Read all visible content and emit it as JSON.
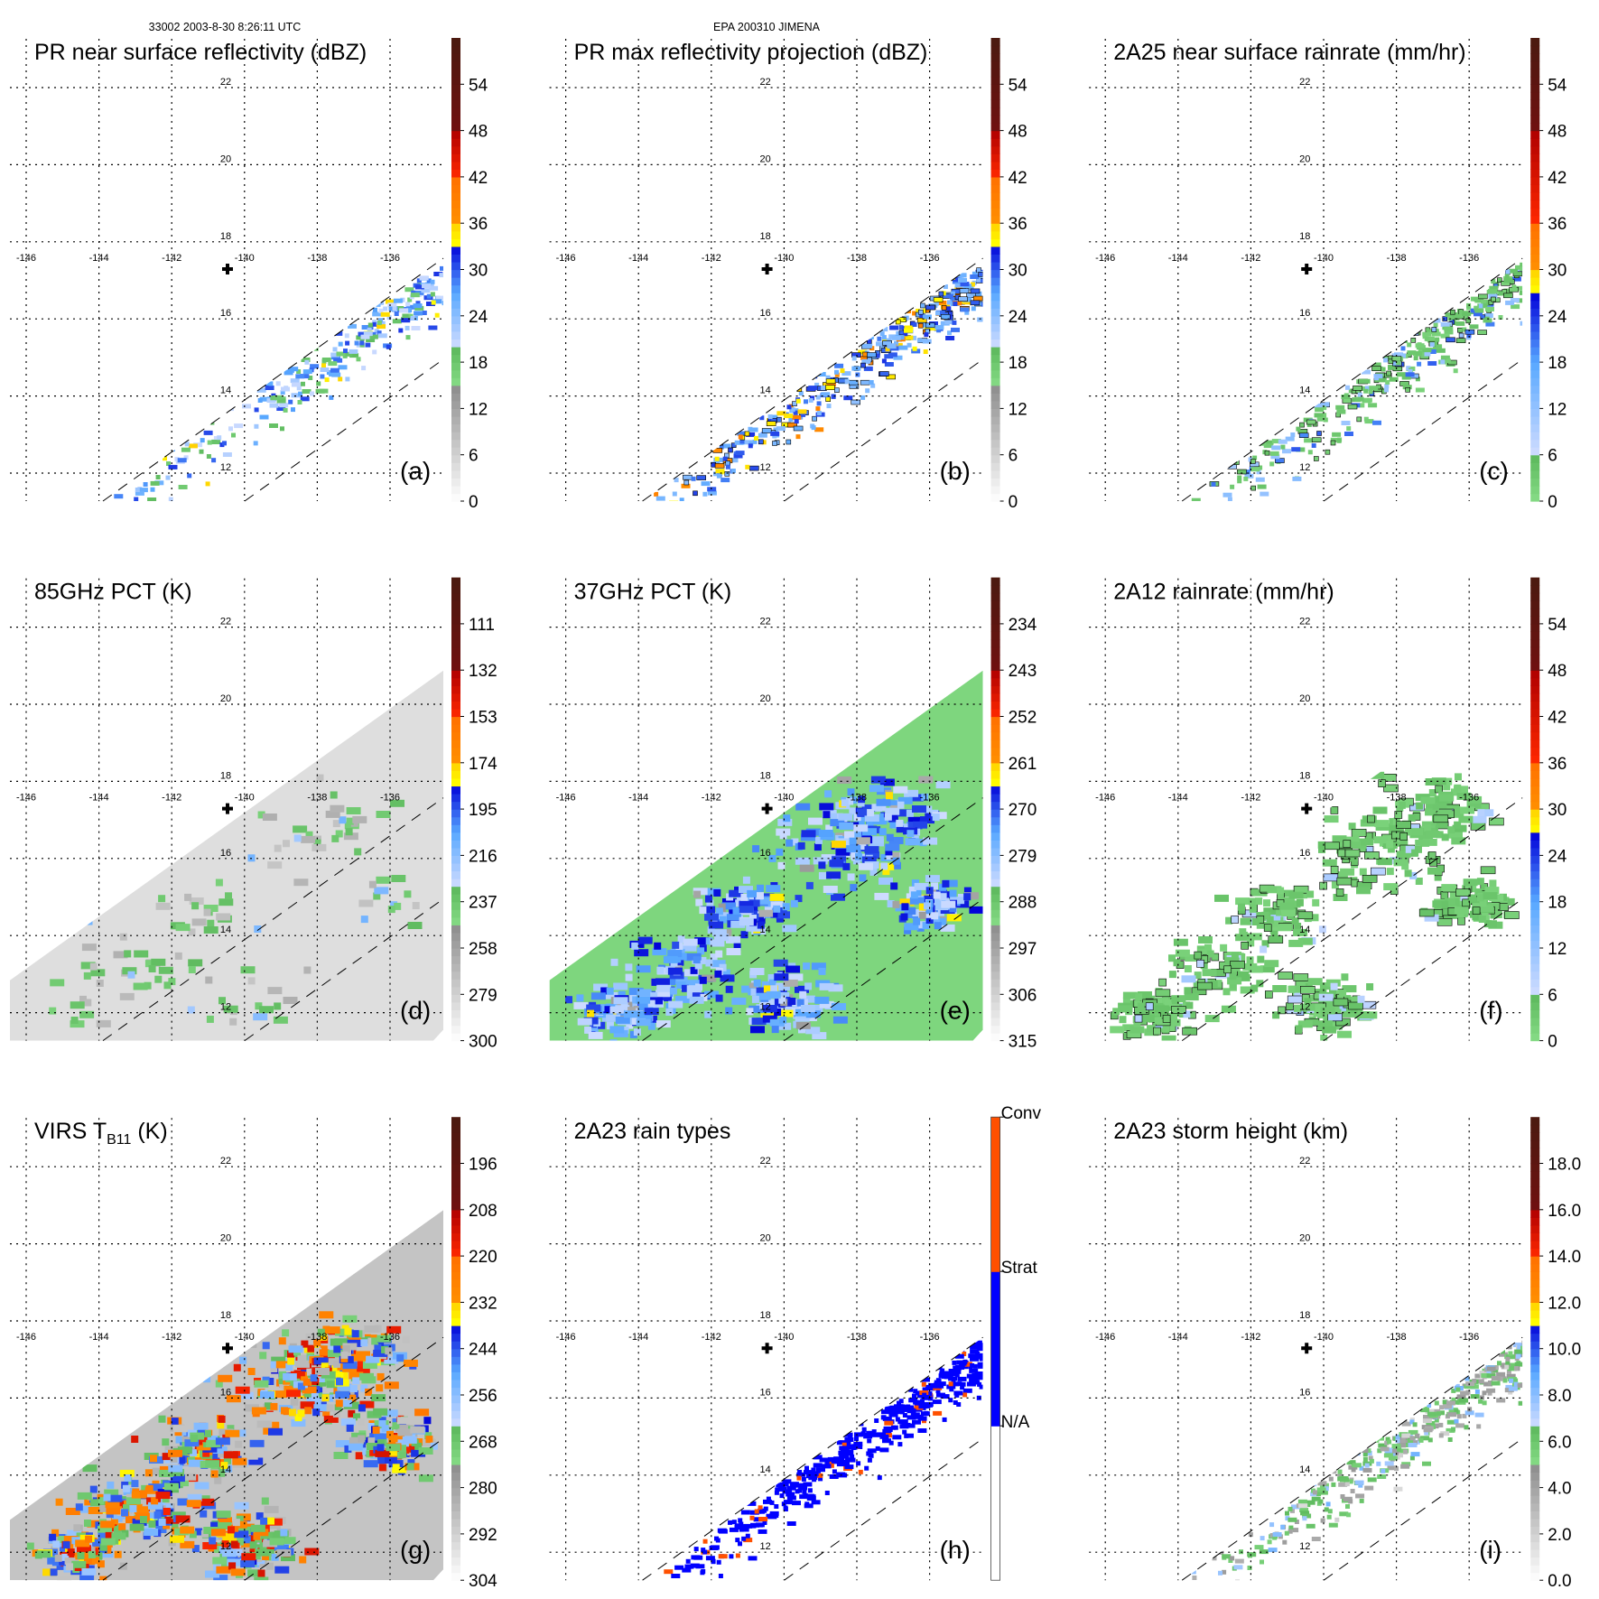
{
  "header": {
    "orbit_time": "33002 2003-8-30 8:26:11 UTC",
    "storm": "EPA 200310 JIMENA"
  },
  "colors": {
    "grid": "#000000",
    "pct85_bg": "#dedede",
    "pct37_bg": "#7ed67e",
    "virs_bg": "#c4c4c4"
  },
  "chart_data": [
    {
      "type": "heatmap",
      "id": "a",
      "title": "PR near surface reflectivity (dBZ)",
      "panel_label": "(a)",
      "colorbar": {
        "ticks": [
          "0",
          "6",
          "12",
          "18",
          "24",
          "30",
          "36",
          "42",
          "48",
          "54"
        ],
        "range": [
          0,
          60
        ],
        "scheme": "standard"
      },
      "lon_ticks": [
        "-146",
        "-144",
        "-142",
        "-140",
        "-138",
        "-136"
      ],
      "lat_ticks": [
        "22",
        "20",
        "18",
        "16",
        "14",
        "12"
      ],
      "swath": "pr"
    },
    {
      "type": "heatmap",
      "id": "b",
      "title": "PR max reflectivity projection (dBZ)",
      "panel_label": "(b)",
      "colorbar": {
        "ticks": [
          "0",
          "6",
          "12",
          "18",
          "24",
          "30",
          "36",
          "42",
          "48",
          "54"
        ],
        "range": [
          0,
          60
        ],
        "scheme": "standard"
      },
      "lon_ticks": [
        "-146",
        "-144",
        "-142",
        "-140",
        "-138",
        "-136"
      ],
      "lat_ticks": [
        "22",
        "20",
        "18",
        "16",
        "14",
        "12"
      ],
      "swath": "pr"
    },
    {
      "type": "heatmap",
      "id": "c",
      "title": "2A25 near surface rainrate (mm/hr)",
      "panel_label": "(c)",
      "colorbar": {
        "ticks": [
          "0",
          "6",
          "12",
          "18",
          "24",
          "30",
          "36",
          "42",
          "48",
          "54"
        ],
        "range": [
          0,
          60
        ],
        "scheme": "rain"
      },
      "lon_ticks": [
        "-146",
        "-144",
        "-142",
        "-140",
        "-138",
        "-136"
      ],
      "lat_ticks": [
        "22",
        "20",
        "18",
        "16",
        "14",
        "12"
      ],
      "swath": "pr"
    },
    {
      "type": "heatmap",
      "id": "d",
      "title": "85GHz PCT (K)",
      "panel_label": "(d)",
      "colorbar": {
        "ticks": [
          "300",
          "279",
          "258",
          "237",
          "216",
          "195",
          "174",
          "153",
          "132",
          "111"
        ],
        "range": [
          300,
          90
        ],
        "scheme": "standard"
      },
      "lon_ticks": [
        "-146",
        "-144",
        "-142",
        "-140",
        "-138",
        "-136"
      ],
      "lat_ticks": [
        "22",
        "20",
        "18",
        "16",
        "14",
        "12"
      ],
      "swath": "tmi"
    },
    {
      "type": "heatmap",
      "id": "e",
      "title": "37GHz PCT (K)",
      "panel_label": "(e)",
      "colorbar": {
        "ticks": [
          "315",
          "306",
          "297",
          "288",
          "279",
          "270",
          "261",
          "252",
          "243",
          "234"
        ],
        "range": [
          315,
          225
        ],
        "scheme": "standard"
      },
      "lon_ticks": [
        "-146",
        "-144",
        "-142",
        "-140",
        "-138",
        "-136"
      ],
      "lat_ticks": [
        "22",
        "20",
        "18",
        "16",
        "14",
        "12"
      ],
      "swath": "tmi"
    },
    {
      "type": "heatmap",
      "id": "f",
      "title": "2A12 rainrate (mm/hr)",
      "panel_label": "(f)",
      "colorbar": {
        "ticks": [
          "0",
          "6",
          "12",
          "18",
          "24",
          "30",
          "36",
          "42",
          "48",
          "54"
        ],
        "range": [
          0,
          60
        ],
        "scheme": "rain"
      },
      "lon_ticks": [
        "-146",
        "-144",
        "-142",
        "-140",
        "-138",
        "-136"
      ],
      "lat_ticks": [
        "22",
        "20",
        "18",
        "16",
        "14",
        "12"
      ],
      "swath": "tmi"
    },
    {
      "type": "heatmap",
      "id": "g",
      "title": "VIRS T",
      "title_sub": "B11",
      "title_suffix": " (K)",
      "panel_label": "(g)",
      "colorbar": {
        "ticks": [
          "304",
          "292",
          "280",
          "268",
          "256",
          "244",
          "232",
          "220",
          "208",
          "196"
        ],
        "range": [
          304,
          184
        ],
        "scheme": "standard"
      },
      "lon_ticks": [
        "-146",
        "-144",
        "-142",
        "-140",
        "-138",
        "-136"
      ],
      "lat_ticks": [
        "22",
        "20",
        "18",
        "16",
        "14",
        "12"
      ],
      "swath": "tmi"
    },
    {
      "type": "heatmap",
      "id": "h",
      "title": "2A23 rain types",
      "panel_label": "(h)",
      "colorbar": {
        "ticks": [
          "N/A",
          "Strat",
          "Conv"
        ],
        "scheme": "types"
      },
      "lon_ticks": [
        "-146",
        "-144",
        "-142",
        "-140",
        "-138",
        "-136"
      ],
      "lat_ticks": [
        "22",
        "20",
        "18",
        "16",
        "14",
        "12"
      ],
      "swath": "pr"
    },
    {
      "type": "heatmap",
      "id": "i",
      "title": "2A23 storm height (km)",
      "panel_label": "(i)",
      "colorbar": {
        "ticks": [
          "0.0",
          "2.0",
          "4.0",
          "6.0",
          "8.0",
          "10.0",
          "12.0",
          "14.0",
          "16.0",
          "18.0"
        ],
        "range": [
          0,
          20
        ],
        "scheme": "standard"
      },
      "lon_ticks": [
        "-146",
        "-144",
        "-142",
        "-140",
        "-138",
        "-136"
      ],
      "lat_ticks": [
        "22",
        "20",
        "18",
        "16",
        "14",
        "12"
      ],
      "swath": "pr"
    }
  ]
}
